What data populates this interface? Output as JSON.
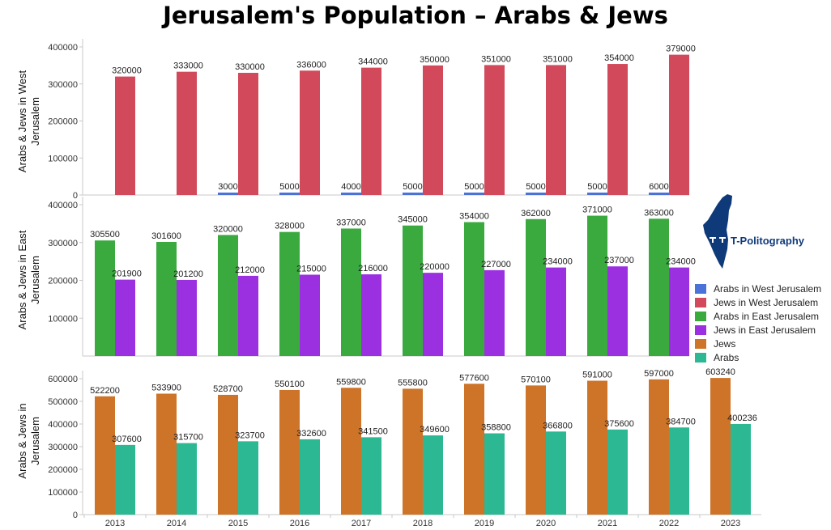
{
  "title": "Jerusalem's Population – Arabs & Jews",
  "logo": {
    "text": "T-Politography",
    "shape": "israel-map-icon",
    "color": "#0f3a7a"
  },
  "legend": [
    {
      "label": "Arabs in West Jerusalem",
      "color": "#4a72d8"
    },
    {
      "label": "Jews in West Jerusalem",
      "color": "#d1495b"
    },
    {
      "label": "Arabs in East Jerusalem",
      "color": "#3aaa3f"
    },
    {
      "label": "Jews in East Jerusalem",
      "color": "#9b30e0"
    },
    {
      "label": "Jews",
      "color": "#cd7429"
    },
    {
      "label": "Arabs",
      "color": "#2bb893"
    }
  ],
  "chart_data": [
    {
      "type": "bar",
      "ylabel": "Arabs & Jews in West Jerusalem",
      "ylim": [
        0,
        400000
      ],
      "yticks": [
        0,
        100000,
        200000,
        300000,
        400000
      ],
      "grid": false,
      "categories": [
        "2013",
        "2014",
        "2015",
        "2016",
        "2017",
        "2018",
        "2019",
        "2020",
        "2021",
        "2022"
      ],
      "series": [
        {
          "name": "Arabs in West Jerusalem",
          "color": "#4a72d8",
          "values": [
            null,
            null,
            3000,
            5000,
            4000,
            5000,
            5000,
            5000,
            5000,
            6000
          ]
        },
        {
          "name": "Jews in West Jerusalem",
          "color": "#d1495b",
          "values": [
            320000,
            333000,
            330000,
            336000,
            344000,
            350000,
            351000,
            351000,
            354000,
            379000
          ]
        }
      ]
    },
    {
      "type": "bar",
      "ylabel": "Arabs & Jews in East Jerusalem",
      "ylim": [
        0,
        400000
      ],
      "yticks": [
        100000,
        200000,
        300000,
        400000
      ],
      "grid": false,
      "categories": [
        "2013",
        "2014",
        "2015",
        "2016",
        "2017",
        "2018",
        "2019",
        "2020",
        "2021",
        "2022"
      ],
      "series": [
        {
          "name": "Arabs in East Jerusalem",
          "color": "#3aaa3f",
          "values": [
            305500,
            301600,
            320000,
            328000,
            337000,
            345000,
            354000,
            362000,
            371000,
            363000
          ]
        },
        {
          "name": "Jews in East Jerusalem",
          "color": "#9b30e0",
          "values": [
            201900,
            201200,
            212000,
            215000,
            216000,
            220000,
            227000,
            234000,
            237000,
            234000
          ]
        }
      ]
    },
    {
      "type": "bar",
      "ylabel": "Arabs & Jews in Jerusalem",
      "ylim": [
        0,
        600000
      ],
      "yticks": [
        0,
        100000,
        200000,
        300000,
        400000,
        500000,
        600000
      ],
      "grid": false,
      "categories": [
        "2013",
        "2014",
        "2015",
        "2016",
        "2017",
        "2018",
        "2019",
        "2020",
        "2021",
        "2022",
        "2023"
      ],
      "series": [
        {
          "name": "Jews",
          "color": "#cd7429",
          "values": [
            522200,
            533900,
            528700,
            550100,
            559800,
            555800,
            577600,
            570100,
            591000,
            597000,
            603240
          ]
        },
        {
          "name": "Arabs",
          "color": "#2bb893",
          "values": [
            307600,
            315700,
            323700,
            332600,
            341500,
            349600,
            358800,
            366800,
            375600,
            384700,
            400236
          ]
        }
      ]
    }
  ]
}
